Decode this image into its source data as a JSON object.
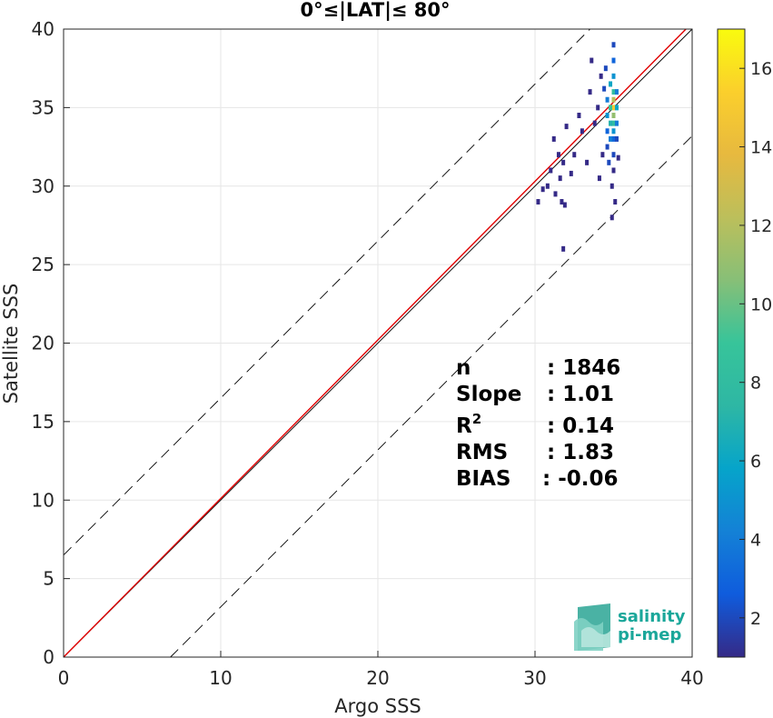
{
  "chart_data": {
    "type": "scatter",
    "title": "0°≤|LAT|≤ 80°",
    "xlabel": "Argo SSS",
    "ylabel": "Satellite SSS",
    "xlim": [
      0,
      40
    ],
    "ylim": [
      0,
      40
    ],
    "x_ticks": [
      "0",
      "10",
      "20",
      "30",
      "40"
    ],
    "y_ticks": [
      "0",
      "5",
      "10",
      "15",
      "20",
      "25",
      "30",
      "35",
      "40"
    ],
    "grid": true,
    "colorbar": {
      "range": [
        1,
        17
      ],
      "ticks": [
        "2",
        "4",
        "6",
        "8",
        "10",
        "12",
        "14",
        "16"
      ],
      "colormap": "parula"
    },
    "reference_lines": [
      {
        "name": "one-to-one",
        "slope": 1,
        "intercept": 0,
        "color": "#000000",
        "style": "solid"
      },
      {
        "name": "regression",
        "slope": 1.01,
        "intercept": 0,
        "color": "#e00000",
        "style": "solid"
      },
      {
        "name": "upper-bound",
        "slope": 1,
        "intercept": 6.5,
        "color": "#000000",
        "style": "dashed"
      },
      {
        "name": "lower-bound",
        "slope": 1,
        "intercept": -6.8,
        "color": "#000000",
        "style": "dashed"
      }
    ],
    "density_points": [
      {
        "x": 35.0,
        "y": 39.0,
        "c": 2
      },
      {
        "x": 35.0,
        "y": 38.0,
        "c": 3
      },
      {
        "x": 35.0,
        "y": 37.0,
        "c": 5
      },
      {
        "x": 35.0,
        "y": 36.0,
        "c": 8
      },
      {
        "x": 35.0,
        "y": 35.5,
        "c": 12
      },
      {
        "x": 35.0,
        "y": 35.0,
        "c": 15
      },
      {
        "x": 35.0,
        "y": 34.5,
        "c": 11
      },
      {
        "x": 35.0,
        "y": 34.0,
        "c": 8
      },
      {
        "x": 35.0,
        "y": 33.5,
        "c": 5
      },
      {
        "x": 35.0,
        "y": 33.0,
        "c": 3
      },
      {
        "x": 35.0,
        "y": 32.0,
        "c": 2
      },
      {
        "x": 35.0,
        "y": 31.0,
        "c": 1
      },
      {
        "x": 34.8,
        "y": 36.5,
        "c": 6
      },
      {
        "x": 34.8,
        "y": 35.0,
        "c": 9
      },
      {
        "x": 34.8,
        "y": 34.0,
        "c": 7
      },
      {
        "x": 34.8,
        "y": 33.0,
        "c": 4
      },
      {
        "x": 34.6,
        "y": 35.5,
        "c": 4
      },
      {
        "x": 34.6,
        "y": 34.5,
        "c": 5
      },
      {
        "x": 34.6,
        "y": 33.5,
        "c": 3
      },
      {
        "x": 34.6,
        "y": 32.5,
        "c": 2
      },
      {
        "x": 35.2,
        "y": 36.0,
        "c": 4
      },
      {
        "x": 35.2,
        "y": 35.0,
        "c": 6
      },
      {
        "x": 35.2,
        "y": 34.0,
        "c": 4
      },
      {
        "x": 35.2,
        "y": 33.0,
        "c": 2
      },
      {
        "x": 34.9,
        "y": 30.0,
        "c": 1
      },
      {
        "x": 35.1,
        "y": 29.0,
        "c": 1
      },
      {
        "x": 34.9,
        "y": 28.0,
        "c": 1
      },
      {
        "x": 34.5,
        "y": 37.5,
        "c": 2
      },
      {
        "x": 34.2,
        "y": 37.0,
        "c": 1
      },
      {
        "x": 34.0,
        "y": 35.0,
        "c": 1
      },
      {
        "x": 34.3,
        "y": 32.0,
        "c": 1
      },
      {
        "x": 33.8,
        "y": 34.0,
        "c": 1
      },
      {
        "x": 33.5,
        "y": 36.0,
        "c": 1
      },
      {
        "x": 33.0,
        "y": 33.5,
        "c": 1
      },
      {
        "x": 32.5,
        "y": 32.0,
        "c": 1
      },
      {
        "x": 32.8,
        "y": 34.5,
        "c": 1
      },
      {
        "x": 31.5,
        "y": 32.0,
        "c": 1
      },
      {
        "x": 31.6,
        "y": 30.5,
        "c": 1
      },
      {
        "x": 31.8,
        "y": 31.5,
        "c": 1
      },
      {
        "x": 31.2,
        "y": 33.0,
        "c": 1
      },
      {
        "x": 31.0,
        "y": 31.0,
        "c": 1
      },
      {
        "x": 30.8,
        "y": 30.0,
        "c": 1
      },
      {
        "x": 31.3,
        "y": 29.5,
        "c": 1
      },
      {
        "x": 31.7,
        "y": 29.0,
        "c": 1
      },
      {
        "x": 30.5,
        "y": 29.8,
        "c": 1
      },
      {
        "x": 30.2,
        "y": 29.0,
        "c": 1
      },
      {
        "x": 31.9,
        "y": 28.8,
        "c": 1
      },
      {
        "x": 31.8,
        "y": 26.0,
        "c": 1
      },
      {
        "x": 32.0,
        "y": 33.8,
        "c": 1
      },
      {
        "x": 32.3,
        "y": 30.8,
        "c": 1
      },
      {
        "x": 33.3,
        "y": 31.5,
        "c": 1
      },
      {
        "x": 34.1,
        "y": 30.5,
        "c": 1
      },
      {
        "x": 33.6,
        "y": 38.0,
        "c": 1
      },
      {
        "x": 34.7,
        "y": 31.5,
        "c": 2
      },
      {
        "x": 35.3,
        "y": 31.8,
        "c": 1
      },
      {
        "x": 34.4,
        "y": 36.2,
        "c": 2
      }
    ]
  },
  "stats": {
    "n": {
      "label": "n",
      "value": ": 1846"
    },
    "slope": {
      "label": "Slope",
      "value": ": 1.01"
    },
    "r2": {
      "label": "R",
      "sup": "2",
      "value": ": 0.14"
    },
    "rms": {
      "label": "RMS",
      "value": ": 1.83"
    },
    "bias": {
      "label": "BIAS",
      "value": ": -0.06"
    }
  },
  "logo": {
    "line1": "salinity",
    "line2": "pi-mep",
    "color": "#1aa79a"
  }
}
